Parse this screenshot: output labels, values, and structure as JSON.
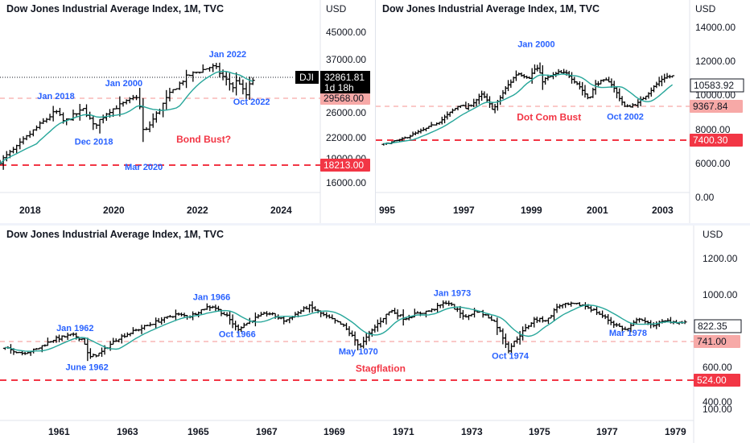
{
  "colors": {
    "bar": "#000000",
    "ma": "#26a69a",
    "level_line": "#f7525f",
    "dashed_red": "#f23645",
    "annotation_blue": "#2962ff",
    "annotation_red": "#f23645",
    "tag_red_bg": "#f23645",
    "tag_pink_bg": "#f7a9a7",
    "tag_black_bg": "#000000",
    "axis_text": "#131722"
  },
  "charts": [
    {
      "id": "top-left",
      "title": "Dow Jones Industrial Average Index, 1M, TVC",
      "currency": "USD",
      "symbol_tag": "DJI",
      "price_tag": "32861.81",
      "countdown_tag": "1d 18h",
      "y_ticks": [
        "45000.00",
        "37000.00",
        "26000.00",
        "22000.00",
        "19000.00",
        "16000.00"
      ],
      "x_ticks": [
        "2018",
        "2020",
        "2022",
        "2024"
      ],
      "level_tags": [
        {
          "value": "29568.00",
          "style": "pink"
        },
        {
          "value": "18213.00",
          "style": "red"
        }
      ],
      "annotations": [
        {
          "text": "Jan 2018",
          "kind": "blue"
        },
        {
          "text": "Dec 2018",
          "kind": "blue"
        },
        {
          "text": "Jan 2000",
          "kind": "blue"
        },
        {
          "text": "Mar 2020",
          "kind": "blue"
        },
        {
          "text": "Jan 2022",
          "kind": "blue"
        },
        {
          "text": "Oct 2022",
          "kind": "blue"
        },
        {
          "text": "Bond Bust?",
          "kind": "red"
        }
      ]
    },
    {
      "id": "top-right",
      "title": "Dow Jones Industrial Average Index, 1M, TVC",
      "currency": "USD",
      "price_tag": "10583.92",
      "y_ticks": [
        "14000.00",
        "12000.00",
        "10000.00",
        "8000.00",
        "6000.00",
        "0.00"
      ],
      "x_ticks": [
        "995",
        "1997",
        "1999",
        "2001",
        "2003"
      ],
      "level_tags": [
        {
          "value": "9367.84",
          "style": "pink"
        },
        {
          "value": "7400.30",
          "style": "red"
        }
      ],
      "annotations": [
        {
          "text": "Jan 2000",
          "kind": "blue"
        },
        {
          "text": "Oct 2002",
          "kind": "blue"
        },
        {
          "text": "Dot Com Bust",
          "kind": "red"
        }
      ]
    },
    {
      "id": "bottom",
      "title": "Dow Jones Industrial Average Index, 1M, TVC",
      "currency": "USD",
      "price_tag": "822.35",
      "y_ticks": [
        "1200.00",
        "1000.00",
        "600.00",
        "400.00",
        "100.00"
      ],
      "x_ticks": [
        "1961",
        "1963",
        "1965",
        "1967",
        "1969",
        "1971",
        "1973",
        "1975",
        "1977",
        "1979"
      ],
      "level_tags": [
        {
          "value": "741.00",
          "style": "pink"
        },
        {
          "value": "524.00",
          "style": "red"
        }
      ],
      "annotations": [
        {
          "text": "Jan 1962",
          "kind": "blue"
        },
        {
          "text": "June 1962",
          "kind": "blue"
        },
        {
          "text": "Jan 1966",
          "kind": "blue"
        },
        {
          "text": "Oct 1966",
          "kind": "blue"
        },
        {
          "text": "May 1070",
          "kind": "blue"
        },
        {
          "text": "Jan 1973",
          "kind": "blue"
        },
        {
          "text": "Oct 1974",
          "kind": "blue"
        },
        {
          "text": "Mar 1978",
          "kind": "blue"
        },
        {
          "text": "Stagflation",
          "kind": "red"
        }
      ]
    }
  ],
  "chart_data": [
    {
      "type": "bar",
      "subtype": "ohlc-monthly",
      "title": "Dow Jones Industrial Average Index, 1M, TVC",
      "x_start": 2016.6,
      "x_end": 2022.9,
      "x_range": [
        2016.6,
        2024.6
      ],
      "y_scale": "log",
      "ylim": [
        14500,
        52000
      ],
      "close_path": [
        [
          2016.6,
          18000
        ],
        [
          2017.0,
          19900
        ],
        [
          2018.0,
          26100
        ],
        [
          2018.2,
          24100
        ],
        [
          2018.7,
          26500
        ],
        [
          2018.95,
          23300
        ],
        [
          2019.3,
          26000
        ],
        [
          2019.9,
          28500
        ],
        [
          2020.05,
          29300
        ],
        [
          2020.2,
          21900
        ],
        [
          2020.6,
          26500
        ],
        [
          2020.85,
          29600
        ],
        [
          2021.3,
          33900
        ],
        [
          2021.9,
          36300
        ],
        [
          2022.0,
          36000
        ],
        [
          2022.15,
          34000
        ],
        [
          2022.45,
          31000
        ],
        [
          2022.55,
          33200
        ],
        [
          2022.75,
          29000
        ],
        [
          2022.9,
          32861
        ]
      ],
      "levels": [
        29568,
        18213
      ],
      "last_price": 32861.81,
      "annotations": [
        {
          "text": "Jan 2018",
          "x": 2018.0,
          "y": 28500
        },
        {
          "text": "Dec 2018",
          "x": 2018.95,
          "y": 20400
        },
        {
          "text": "Jan 2000",
          "x": 2019.7,
          "y": 31400
        },
        {
          "text": "Mar 2020",
          "x": 2020.2,
          "y": 16900
        },
        {
          "text": "Jan 2022",
          "x": 2022.3,
          "y": 38900
        },
        {
          "text": "Oct 2022",
          "x": 2022.9,
          "y": 27400
        },
        {
          "text": "Bond Bust?",
          "x": 2021.7,
          "y": 20700
        }
      ]
    },
    {
      "type": "bar",
      "subtype": "ohlc-monthly",
      "title": "Dow Jones Industrial Average Index, 1M, TVC",
      "x_start": 1995.2,
      "x_end": 2004.25,
      "x_range": [
        1994.95,
        2004.8
      ],
      "y_scale": "linear",
      "ylim": [
        0,
        16000
      ],
      "close_path": [
        [
          1995.2,
          4300
        ],
        [
          1995.8,
          4800
        ],
        [
          1996.5,
          5700
        ],
        [
          1997.0,
          6500
        ],
        [
          1997.6,
          8000
        ],
        [
          1997.8,
          7600
        ],
        [
          1998.3,
          8900
        ],
        [
          1998.65,
          7500
        ],
        [
          1999.0,
          9300
        ],
        [
          1999.4,
          10900
        ],
        [
          1999.8,
          10500
        ],
        [
          2000.0,
          11500
        ],
        [
          2000.2,
          10200
        ],
        [
          2000.7,
          10900
        ],
        [
          2001.0,
          10800
        ],
        [
          2001.3,
          9900
        ],
        [
          2001.65,
          8500
        ],
        [
          2001.9,
          10000
        ],
        [
          2002.3,
          10200
        ],
        [
          2002.6,
          8700
        ],
        [
          2002.8,
          7700
        ],
        [
          2003.2,
          8100
        ],
        [
          2003.6,
          9300
        ],
        [
          2004.0,
          10500
        ],
        [
          2004.25,
          10583.92
        ]
      ],
      "levels": [
        9367.84,
        7400.3
      ],
      "last_price": 10583.92,
      "annotations": [
        {
          "text": "Jan 2000",
          "x": 2000.0,
          "y": 13300
        },
        {
          "text": "Oct 2002",
          "x": 2002.8,
          "y": 6600
        },
        {
          "text": "Dot Com Bust",
          "x": 2000.4,
          "y": 6500
        }
      ]
    },
    {
      "type": "bar",
      "subtype": "ohlc-monthly",
      "title": "Dow Jones Industrial Average Index, 1M, TVC",
      "x_start": 1960.0,
      "x_end": 1979.9,
      "x_range": [
        1959.85,
        1980.15
      ],
      "y_scale": "log",
      "ylim": [
        300,
        1500
      ],
      "close_path": [
        [
          1960.0,
          630
        ],
        [
          1960.5,
          600
        ],
        [
          1960.9,
          620
        ],
        [
          1961.4,
          690
        ],
        [
          1961.95,
          725
        ],
        [
          1962.3,
          690
        ],
        [
          1962.45,
          570
        ],
        [
          1962.8,
          600
        ],
        [
          1963.3,
          700
        ],
        [
          1964.0,
          780
        ],
        [
          1965.0,
          900
        ],
        [
          1965.4,
          880
        ],
        [
          1965.9,
          970
        ],
        [
          1966.1,
          980
        ],
        [
          1966.5,
          880
        ],
        [
          1966.8,
          770
        ],
        [
          1967.3,
          860
        ],
        [
          1967.7,
          915
        ],
        [
          1968.2,
          840
        ],
        [
          1968.9,
          980
        ],
        [
          1969.4,
          880
        ],
        [
          1969.9,
          800
        ],
        [
          1970.4,
          640
        ],
        [
          1970.9,
          810
        ],
        [
          1971.3,
          940
        ],
        [
          1971.7,
          860
        ],
        [
          1972.0,
          900
        ],
        [
          1972.5,
          940
        ],
        [
          1972.95,
          1030
        ],
        [
          1973.2,
          950
        ],
        [
          1973.5,
          870
        ],
        [
          1973.8,
          940
        ],
        [
          1974.3,
          850
        ],
        [
          1974.6,
          700
        ],
        [
          1974.75,
          620
        ],
        [
          1975.0,
          700
        ],
        [
          1975.5,
          850
        ],
        [
          1975.9,
          850
        ],
        [
          1976.2,
          990
        ],
        [
          1976.7,
          1000
        ],
        [
          1976.95,
          990
        ],
        [
          1977.3,
          930
        ],
        [
          1977.8,
          820
        ],
        [
          1978.2,
          760
        ],
        [
          1978.6,
          870
        ],
        [
          1978.9,
          800
        ],
        [
          1979.4,
          840
        ],
        [
          1979.9,
          822.35
        ]
      ],
      "levels": [
        741.0,
        524.0
      ],
      "last_price": 822.35,
      "annotations": [
        {
          "text": "Jan 1962",
          "x": 1962.05,
          "y": 755
        },
        {
          "text": "June 1962",
          "x": 1962.4,
          "y": 500
        },
        {
          "text": "Jan 1966",
          "x": 1966.05,
          "y": 1045
        },
        {
          "text": "Oct 1966",
          "x": 1966.8,
          "y": 710
        },
        {
          "text": "May 1070",
          "x": 1970.35,
          "y": 590
        },
        {
          "text": "Jan 1973",
          "x": 1973.1,
          "y": 1090
        },
        {
          "text": "Oct 1974",
          "x": 1974.8,
          "y": 565
        },
        {
          "text": "Mar 1978",
          "x": 1978.25,
          "y": 718
        },
        {
          "text": "Stagflation",
          "x": 1971.0,
          "y": 493
        }
      ]
    }
  ]
}
